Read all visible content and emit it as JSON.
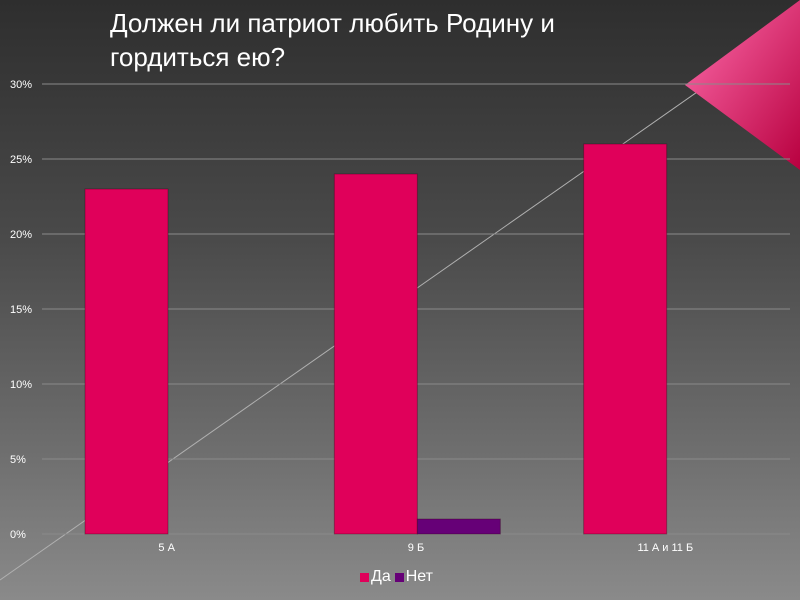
{
  "chart_data": {
    "type": "bar",
    "title": "Должен ли патриот любить Родину и гордиться ею?",
    "categories": [
      "5 А",
      "9 Б",
      "11 А и 11 Б"
    ],
    "series": [
      {
        "name": "Да",
        "color": "#e0005a",
        "values": [
          23,
          24,
          26
        ]
      },
      {
        "name": "Нет",
        "color": "#660077",
        "values": [
          0,
          1,
          0
        ]
      }
    ],
    "yticks": [
      "0%",
      "5%",
      "10%",
      "15%",
      "20%",
      "25%",
      "30%"
    ],
    "ylim": [
      0,
      30
    ],
    "xlabel": "",
    "ylabel": "",
    "grid": true,
    "legend_position": "bottom"
  },
  "colors": {
    "accent": "#e0005a",
    "gridline": "#8a8a8a"
  }
}
